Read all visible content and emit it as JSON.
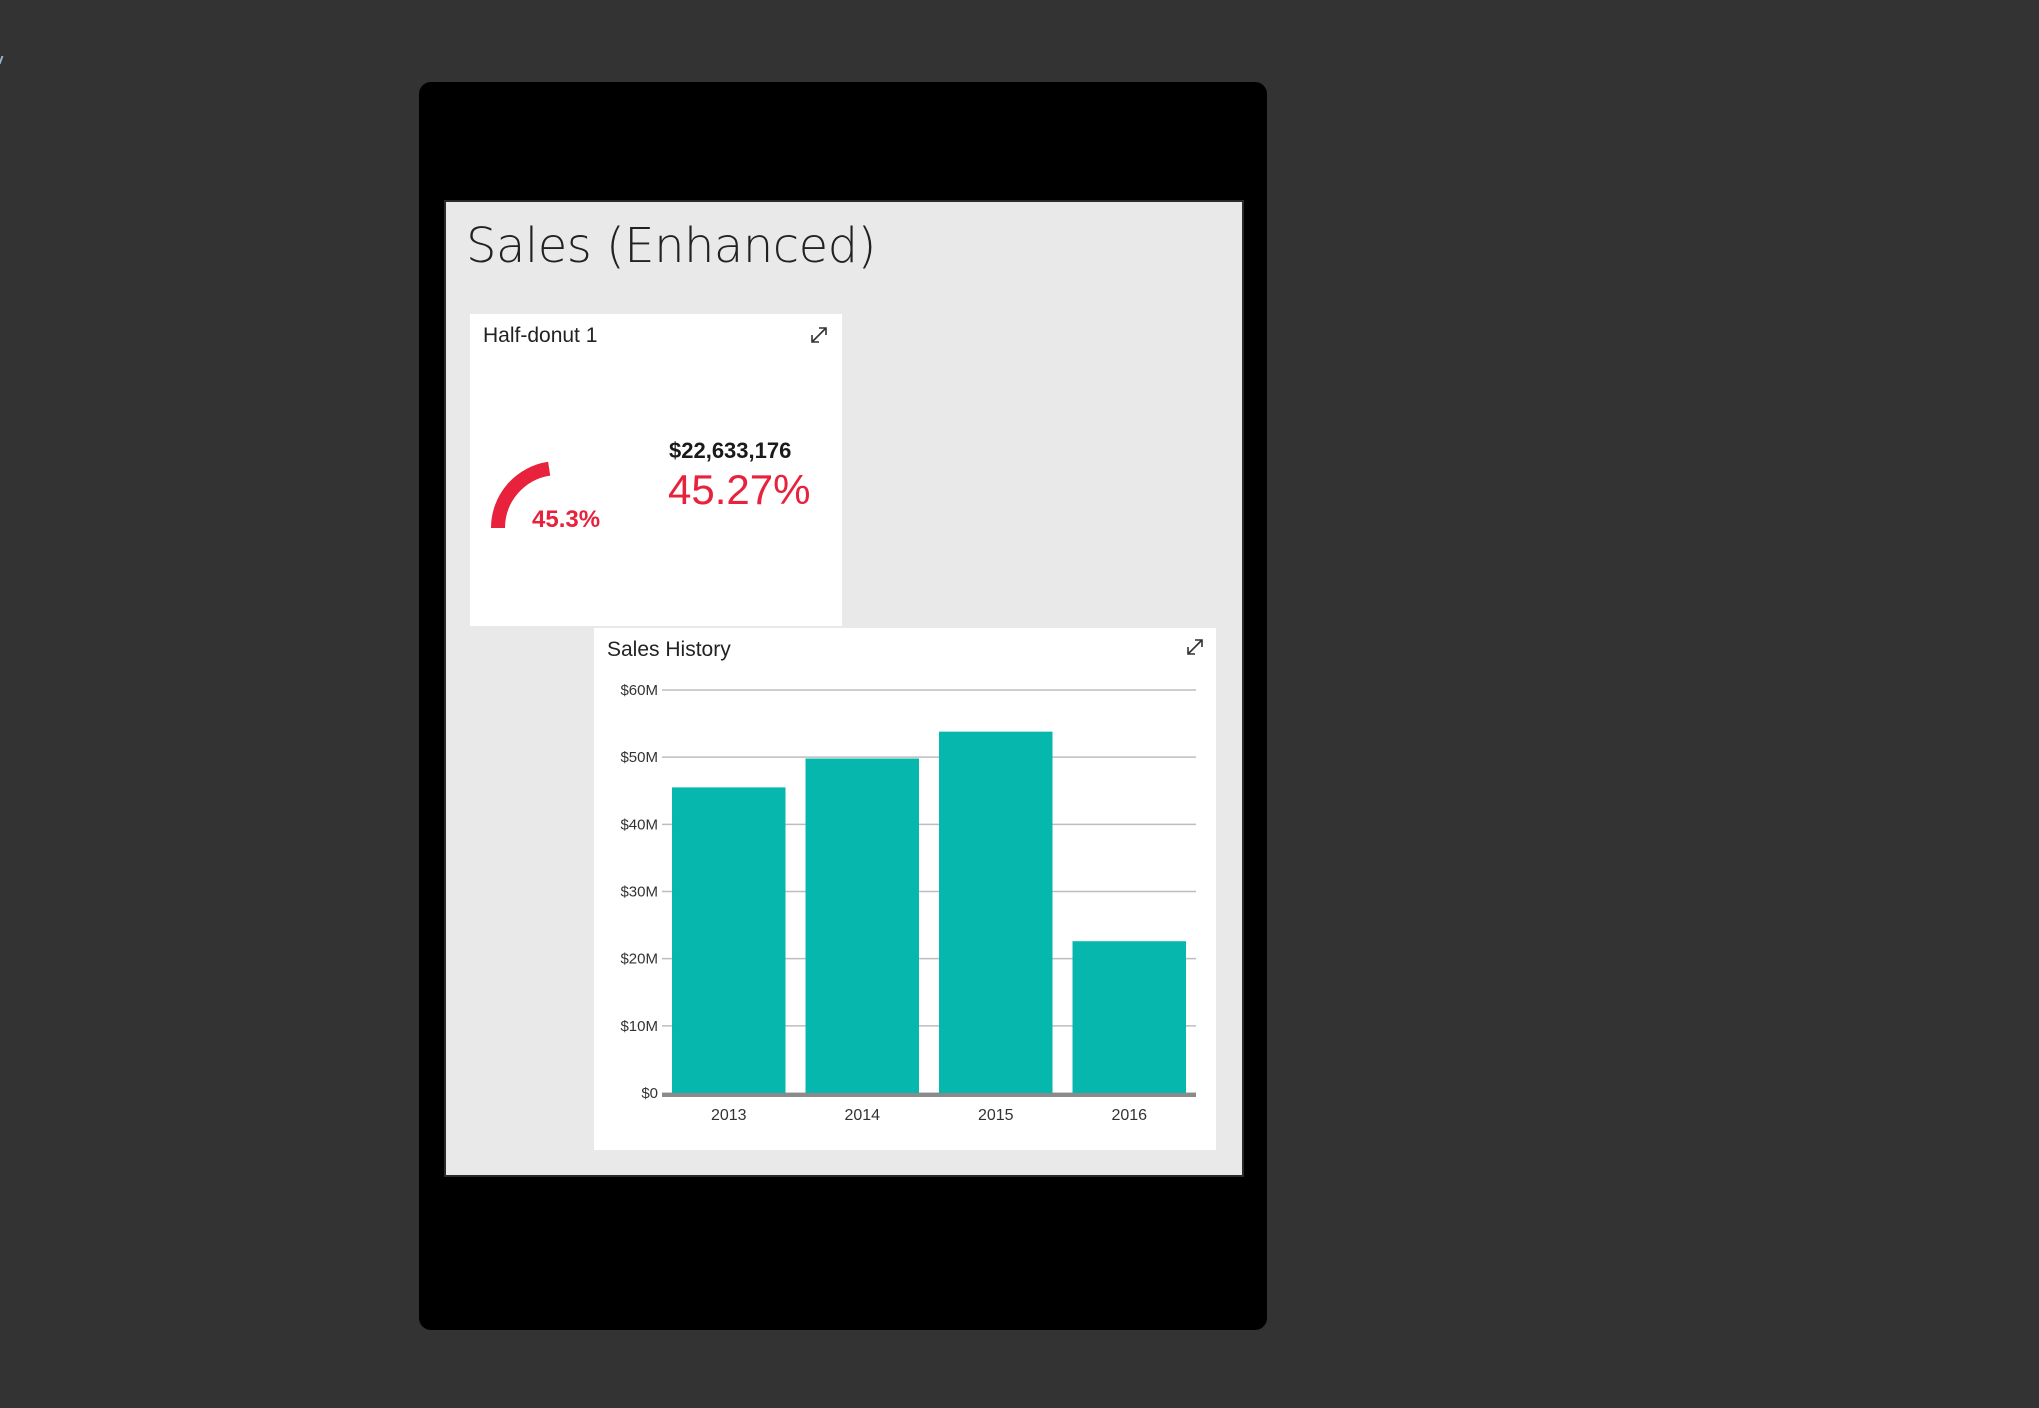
{
  "page": {
    "title": "Sales (Enhanced)"
  },
  "donut_tile": {
    "title": "Half-donut 1",
    "expand_icon": "expand-icon",
    "gauge_label": "45.3%",
    "gauge_fraction": 0.453,
    "gauge_color": "#e8213c",
    "amount": "$22,633,176",
    "percent": "45.27%"
  },
  "history_tile": {
    "title": "Sales History",
    "expand_icon": "expand-icon"
  },
  "colors": {
    "background": "#333333",
    "device": "#000000",
    "canvas": "#e9e9e9",
    "tile": "#ffffff",
    "bar": "#05b7ad",
    "accent_red": "#e8213c"
  },
  "chart_data": {
    "type": "bar",
    "title": "Sales History",
    "categories": [
      "2013",
      "2014",
      "2015",
      "2016"
    ],
    "values": [
      45.5,
      49.8,
      53.8,
      22.6
    ],
    "value_unit": "$M",
    "ylim": [
      0,
      60
    ],
    "yticks": [
      0,
      10,
      20,
      30,
      40,
      50,
      60
    ],
    "ytick_labels": [
      "$0",
      "$10M",
      "$20M",
      "$30M",
      "$40M",
      "$50M",
      "$60M"
    ],
    "xlabel": "",
    "ylabel": "",
    "grid": true,
    "legend": "none",
    "color": "#05b7ad"
  }
}
